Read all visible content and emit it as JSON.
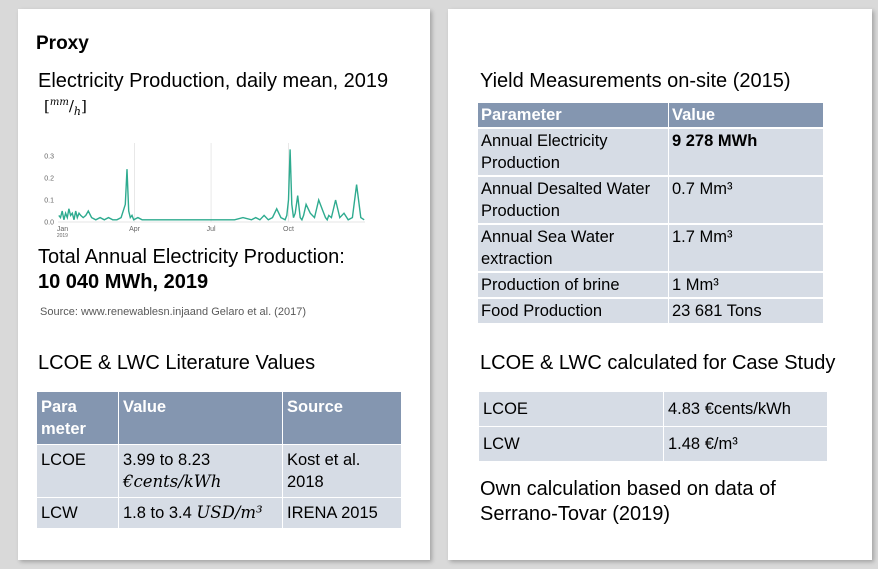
{
  "left": {
    "proxy_label": "Proxy",
    "chart_title": "Electricity Production, daily mean, 2019",
    "unit": {
      "open": "[",
      "numerator": "mm",
      "denominator": "h",
      "close": "]"
    },
    "total_label": "Total Annual Electricity Production:",
    "total_value": "10 040 MWh, 2019",
    "source": "Source: www.renewablesn.injaand Gelaro et al. (2017)",
    "lit_title": "LCOE & LWC Literature Values",
    "lit_table": {
      "headers": [
        "Para\nmeter",
        "Value",
        "Source"
      ],
      "rows": [
        {
          "param": "LCOE",
          "value_main": "3.99 to 8.23",
          "value_unit": "€cents/kWh",
          "source": "Kost et al. 2018"
        },
        {
          "param": "LCW",
          "value_main": "1.8 to 3.4",
          "value_unit": "USD/m³",
          "source": "IRENA 2015"
        }
      ]
    }
  },
  "right": {
    "yield_title": "Yield Measurements on-site (2015)",
    "yield_table": {
      "headers": [
        "Parameter",
        "Value"
      ],
      "rows": [
        [
          "Annual Electricity Production",
          "9 278 MWh"
        ],
        [
          "Annual Desalted Water Production",
          "0.7 Mm³"
        ],
        [
          "Annual Sea Water extraction",
          "1.7 Mm³"
        ],
        [
          "Production of brine",
          "1 Mm³"
        ],
        [
          "Food Production",
          "23 681 Tons"
        ]
      ]
    },
    "calc_title": "LCOE & LWC calculated for Case Study",
    "calc_table": {
      "rows": [
        {
          "param": "LCOE",
          "value": "4.83 €cents/kWh"
        },
        {
          "param": "LCW",
          "value": "1.48 €/m³"
        }
      ]
    },
    "note": "Own calculation based on data of Serrano-Tovar (2019)"
  },
  "chart_data": {
    "type": "line",
    "title": "Electricity Production, daily mean, 2019",
    "x_tick_labels": [
      "Jan\n2019",
      "Apr",
      "Jul",
      "Oct"
    ],
    "y_tick_labels": [
      "0.0",
      "0.1",
      "0.2",
      "0.3"
    ],
    "ylim": [
      0,
      0.35
    ],
    "grid": "vertical lines at Apr, Jul, Oct",
    "series": [
      {
        "color": "#2eab8f",
        "x": [
          1,
          3,
          5,
          7,
          9,
          11,
          13,
          15,
          17,
          19,
          21,
          23,
          25,
          27,
          30,
          33,
          36,
          40,
          45,
          50,
          55,
          60,
          65,
          70,
          75,
          80,
          82,
          84,
          86,
          88,
          90,
          95,
          100,
          110,
          120,
          130,
          140,
          150,
          160,
          170,
          180,
          190,
          200,
          210,
          220,
          230,
          235,
          240,
          245,
          250,
          255,
          260,
          265,
          270,
          272,
          274,
          276,
          278,
          280,
          282,
          285,
          288,
          290,
          292,
          295,
          300,
          305,
          310,
          315,
          318,
          320,
          322,
          325,
          330,
          335,
          340,
          345,
          350,
          355,
          360,
          364
        ],
        "values": [
          0.03,
          0.02,
          0.05,
          0.01,
          0.04,
          0.02,
          0.06,
          0.03,
          0.04,
          0.01,
          0.05,
          0.02,
          0.04,
          0.03,
          0.02,
          0.03,
          0.05,
          0.02,
          0.01,
          0.02,
          0.01,
          0.02,
          0.01,
          0.01,
          0.02,
          0.08,
          0.24,
          0.05,
          0.02,
          0.03,
          0.01,
          0.02,
          0.01,
          0.01,
          0.01,
          0.01,
          0.01,
          0.01,
          0.01,
          0.01,
          0.01,
          0.01,
          0.01,
          0.01,
          0.02,
          0.01,
          0.02,
          0.01,
          0.03,
          0.01,
          0.02,
          0.06,
          0.02,
          0.01,
          0.03,
          0.1,
          0.33,
          0.08,
          0.02,
          0.04,
          0.12,
          0.02,
          0.01,
          0.03,
          0.08,
          0.04,
          0.02,
          0.1,
          0.05,
          0.02,
          0.01,
          0.03,
          0.02,
          0.1,
          0.02,
          0.04,
          0.01,
          0.02,
          0.17,
          0.02,
          0.01
        ]
      }
    ]
  }
}
